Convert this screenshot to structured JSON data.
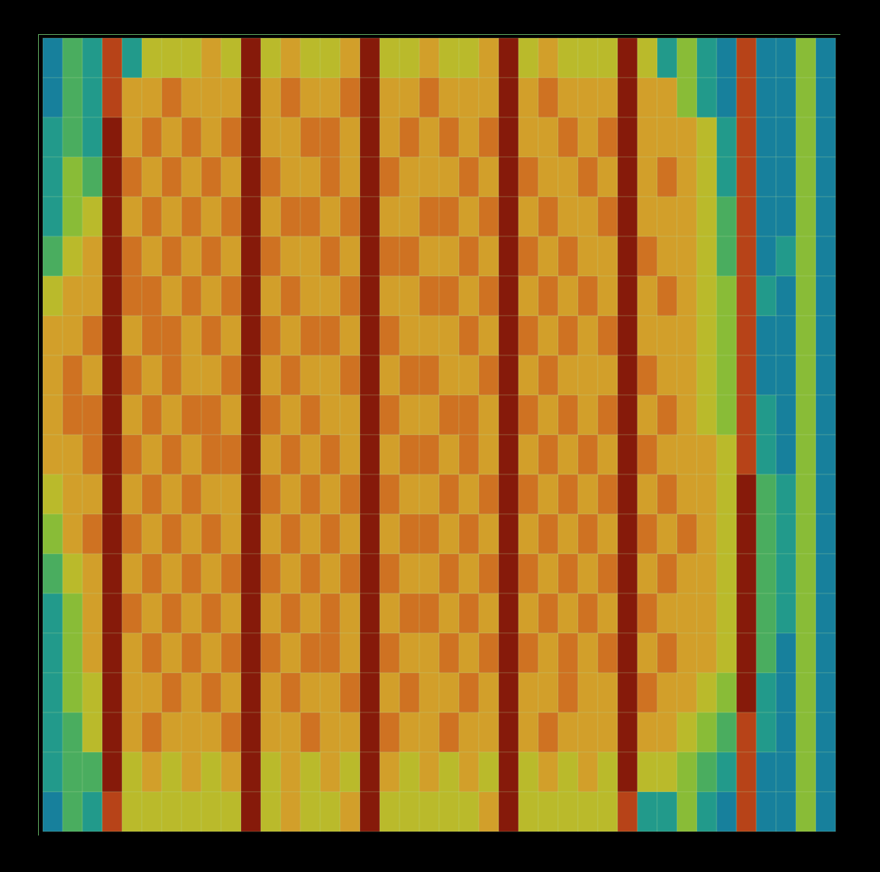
{
  "chart_data": {
    "type": "heatmap",
    "tick_labels": false,
    "cells": [
      [
        1,
        3,
        2,
        8,
        2,
        5,
        5,
        5,
        6,
        5,
        9,
        5,
        6,
        5,
        5,
        6,
        9,
        5,
        5,
        6,
        5,
        5,
        6,
        9,
        5,
        6,
        5,
        5,
        5,
        9,
        5,
        2,
        4,
        2,
        1,
        8,
        1,
        1,
        4,
        1
      ],
      [
        1,
        3,
        2,
        8,
        6,
        6,
        7,
        6,
        6,
        6,
        9,
        6,
        7,
        6,
        6,
        7,
        9,
        6,
        6,
        7,
        6,
        6,
        6,
        9,
        6,
        7,
        6,
        6,
        6,
        9,
        6,
        6,
        4,
        2,
        1,
        8,
        1,
        1,
        4,
        1
      ],
      [
        2,
        3,
        2,
        9,
        6,
        7,
        6,
        7,
        6,
        7,
        9,
        6,
        6,
        7,
        7,
        6,
        9,
        6,
        7,
        6,
        7,
        6,
        7,
        9,
        6,
        6,
        7,
        6,
        7,
        9,
        6,
        6,
        6,
        5,
        2,
        8,
        1,
        1,
        4,
        1
      ],
      [
        2,
        4,
        3,
        9,
        7,
        6,
        7,
        6,
        7,
        6,
        9,
        7,
        6,
        6,
        7,
        6,
        9,
        7,
        6,
        6,
        6,
        7,
        6,
        9,
        7,
        6,
        6,
        7,
        6,
        9,
        6,
        7,
        6,
        5,
        2,
        8,
        1,
        1,
        4,
        1
      ],
      [
        2,
        4,
        5,
        9,
        6,
        7,
        6,
        7,
        6,
        7,
        9,
        6,
        7,
        7,
        6,
        7,
        9,
        6,
        6,
        7,
        7,
        6,
        7,
        9,
        6,
        7,
        6,
        6,
        7,
        9,
        6,
        6,
        6,
        5,
        3,
        8,
        1,
        1,
        4,
        1
      ],
      [
        3,
        5,
        6,
        9,
        7,
        6,
        7,
        6,
        7,
        6,
        9,
        7,
        6,
        6,
        7,
        6,
        9,
        7,
        7,
        6,
        6,
        7,
        6,
        9,
        7,
        6,
        7,
        6,
        6,
        9,
        7,
        6,
        6,
        5,
        3,
        8,
        1,
        2,
        4,
        1
      ],
      [
        5,
        6,
        6,
        9,
        7,
        7,
        6,
        7,
        6,
        7,
        9,
        6,
        7,
        6,
        6,
        7,
        9,
        6,
        6,
        7,
        7,
        6,
        7,
        9,
        6,
        7,
        6,
        7,
        6,
        9,
        6,
        7,
        6,
        5,
        4,
        8,
        2,
        1,
        4,
        1
      ],
      [
        6,
        6,
        7,
        9,
        6,
        7,
        7,
        6,
        7,
        6,
        9,
        7,
        6,
        7,
        7,
        6,
        9,
        7,
        6,
        6,
        6,
        7,
        6,
        9,
        7,
        6,
        7,
        6,
        7,
        9,
        6,
        6,
        6,
        5,
        4,
        8,
        1,
        1,
        4,
        1
      ],
      [
        6,
        7,
        6,
        9,
        7,
        6,
        7,
        6,
        6,
        7,
        9,
        6,
        7,
        6,
        6,
        7,
        9,
        6,
        7,
        7,
        6,
        6,
        7,
        9,
        6,
        7,
        6,
        6,
        6,
        9,
        7,
        6,
        6,
        5,
        4,
        8,
        1,
        1,
        4,
        1
      ],
      [
        6,
        7,
        7,
        9,
        6,
        7,
        6,
        7,
        7,
        6,
        9,
        7,
        6,
        7,
        6,
        6,
        9,
        7,
        6,
        6,
        7,
        7,
        6,
        9,
        7,
        6,
        7,
        6,
        7,
        9,
        6,
        7,
        6,
        5,
        4,
        8,
        2,
        1,
        4,
        1
      ],
      [
        6,
        6,
        7,
        9,
        7,
        6,
        7,
        6,
        7,
        7,
        9,
        6,
        7,
        6,
        7,
        6,
        9,
        6,
        7,
        7,
        6,
        7,
        6,
        9,
        6,
        7,
        6,
        7,
        6,
        9,
        7,
        6,
        6,
        6,
        5,
        8,
        2,
        1,
        4,
        1
      ],
      [
        5,
        6,
        6,
        9,
        6,
        7,
        6,
        7,
        6,
        6,
        9,
        7,
        6,
        7,
        6,
        7,
        9,
        7,
        6,
        6,
        7,
        6,
        7,
        9,
        7,
        6,
        7,
        6,
        7,
        9,
        6,
        7,
        6,
        6,
        5,
        9,
        3,
        2,
        4,
        1
      ],
      [
        4,
        6,
        7,
        9,
        7,
        6,
        7,
        6,
        7,
        6,
        9,
        6,
        7,
        6,
        7,
        6,
        9,
        6,
        7,
        7,
        6,
        7,
        6,
        9,
        6,
        7,
        6,
        7,
        6,
        9,
        7,
        6,
        7,
        6,
        5,
        9,
        3,
        2,
        4,
        1
      ],
      [
        3,
        5,
        6,
        9,
        6,
        7,
        6,
        7,
        6,
        7,
        9,
        7,
        6,
        7,
        6,
        7,
        9,
        7,
        6,
        6,
        7,
        6,
        7,
        9,
        7,
        6,
        7,
        6,
        7,
        9,
        6,
        7,
        6,
        6,
        5,
        9,
        3,
        2,
        4,
        1
      ],
      [
        2,
        4,
        6,
        9,
        7,
        6,
        7,
        6,
        7,
        6,
        9,
        6,
        7,
        6,
        7,
        6,
        9,
        6,
        7,
        7,
        6,
        7,
        6,
        9,
        6,
        7,
        6,
        7,
        6,
        9,
        7,
        6,
        6,
        6,
        5,
        9,
        3,
        2,
        4,
        1
      ],
      [
        2,
        4,
        6,
        9,
        6,
        7,
        6,
        7,
        6,
        7,
        9,
        7,
        6,
        7,
        7,
        6,
        9,
        7,
        6,
        6,
        7,
        6,
        7,
        9,
        7,
        6,
        7,
        6,
        7,
        9,
        6,
        7,
        6,
        6,
        5,
        9,
        3,
        1,
        4,
        1
      ],
      [
        2,
        4,
        5,
        9,
        6,
        6,
        7,
        6,
        7,
        6,
        9,
        6,
        7,
        6,
        6,
        7,
        9,
        6,
        7,
        6,
        6,
        7,
        6,
        9,
        6,
        6,
        7,
        6,
        6,
        9,
        7,
        6,
        6,
        5,
        4,
        9,
        2,
        1,
        4,
        1
      ],
      [
        2,
        3,
        5,
        9,
        6,
        7,
        6,
        6,
        6,
        7,
        9,
        6,
        6,
        7,
        6,
        6,
        9,
        7,
        6,
        6,
        7,
        6,
        6,
        9,
        6,
        7,
        6,
        6,
        6,
        9,
        6,
        6,
        5,
        4,
        3,
        8,
        2,
        1,
        4,
        1
      ],
      [
        2,
        3,
        3,
        9,
        5,
        6,
        5,
        6,
        5,
        6,
        9,
        5,
        6,
        5,
        6,
        5,
        9,
        6,
        5,
        6,
        5,
        6,
        5,
        9,
        5,
        6,
        5,
        6,
        5,
        9,
        5,
        5,
        4,
        3,
        2,
        8,
        1,
        1,
        4,
        1
      ],
      [
        1,
        3,
        2,
        8,
        5,
        5,
        5,
        5,
        5,
        5,
        9,
        5,
        6,
        5,
        5,
        6,
        9,
        5,
        5,
        5,
        5,
        5,
        6,
        9,
        5,
        5,
        5,
        5,
        5,
        8,
        2,
        2,
        4,
        2,
        1,
        8,
        1,
        1,
        4,
        1
      ]
    ]
  }
}
